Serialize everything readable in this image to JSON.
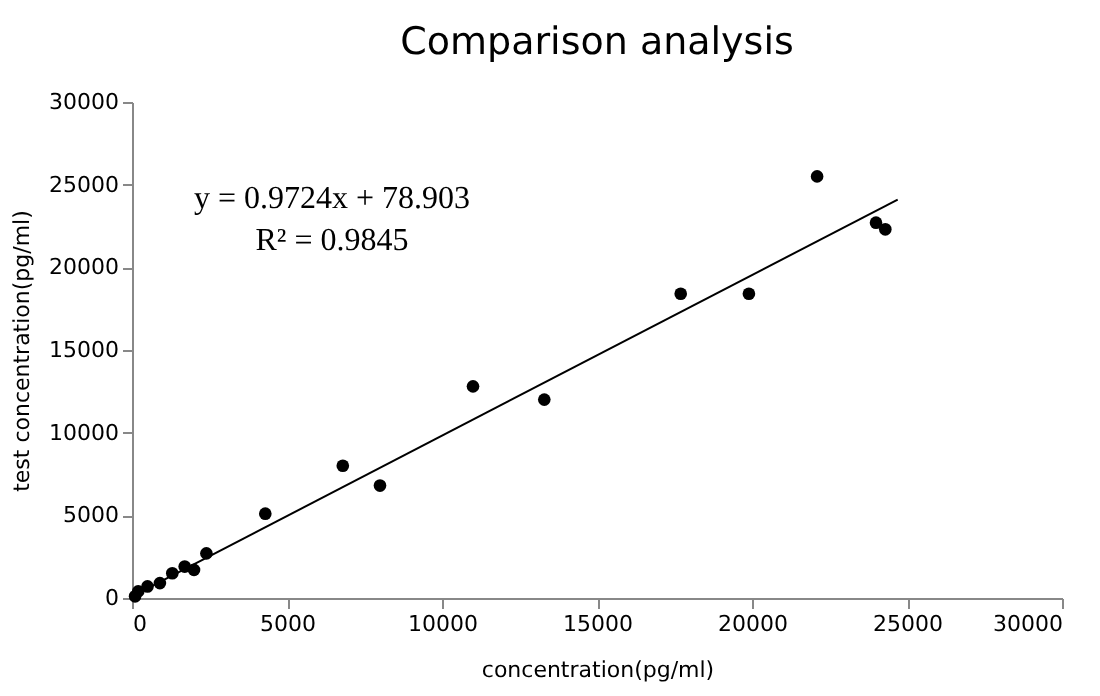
{
  "chart_data": {
    "type": "scatter",
    "title": "Comparison analysis",
    "xlabel": "concentration(pg/ml)",
    "ylabel": "test concentration(pg/ml)",
    "xlim": [
      0,
      30000
    ],
    "ylim": [
      0,
      30000
    ],
    "xticks": [
      0,
      5000,
      10000,
      15000,
      20000,
      25000,
      30000
    ],
    "yticks": [
      0,
      5000,
      10000,
      15000,
      20000,
      25000,
      30000
    ],
    "grid": false,
    "series": [
      {
        "color": "#000000",
        "marker": "circle",
        "x": [
          100,
          200,
          500,
          900,
          1300,
          1700,
          2000,
          2400,
          4300,
          6800,
          8000,
          11000,
          13300,
          17700,
          19900,
          22100,
          24000,
          24300
        ],
        "values": [
          100,
          400,
          700,
          900,
          1500,
          1900,
          1700,
          2700,
          5100,
          8000,
          6800,
          12800,
          12000,
          18400,
          18400,
          25500,
          22700,
          22300
        ]
      },
      {
        "type": "line",
        "color": "#000000",
        "x": [
          0,
          24700
        ],
        "values": [
          100,
          24100
        ]
      }
    ],
    "annotations": [
      "y = 0.9724x + 78.903",
      "R² = 0.9845"
    ]
  }
}
